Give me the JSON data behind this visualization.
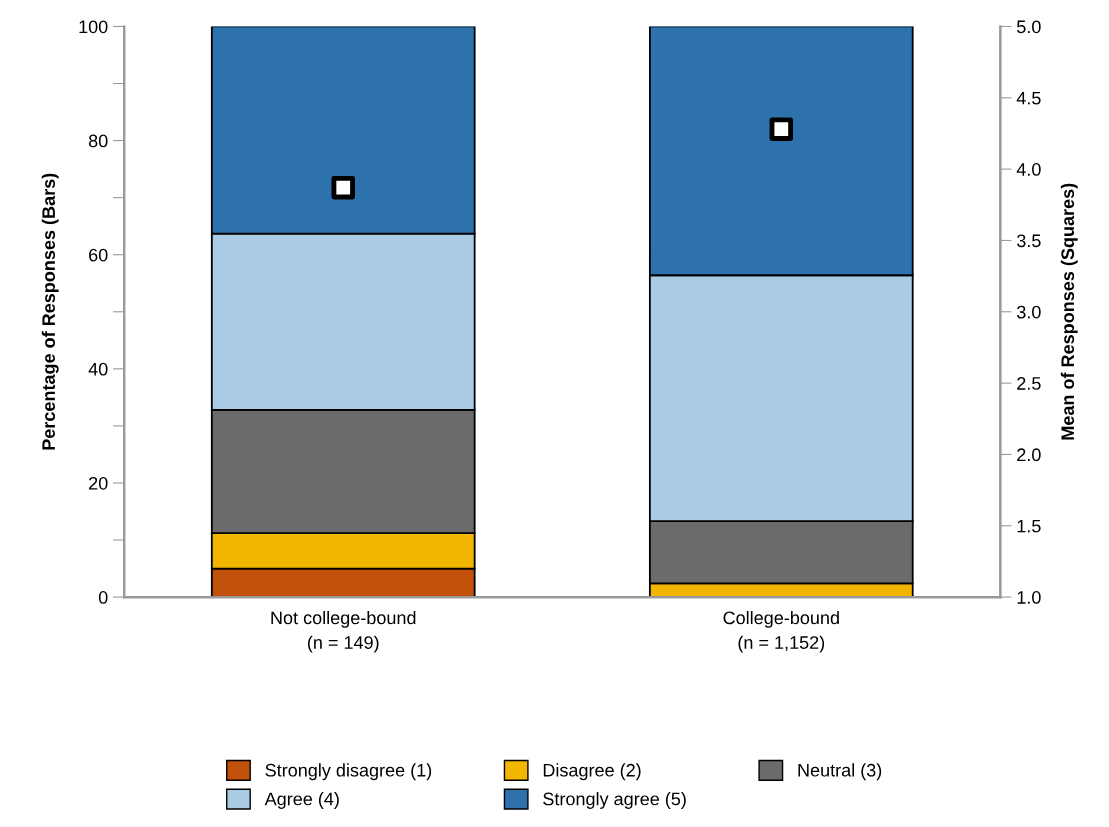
{
  "chart_data": {
    "type": "bar",
    "stacked": true,
    "categories": [
      "Not college-bound\n(n = 149)",
      "College-bound\n(n = 1,152)"
    ],
    "series": [
      {
        "name": "Strongly disagree (1)",
        "color": "#c0500a",
        "values": [
          5.0,
          0
        ]
      },
      {
        "name": "Disagree (2)",
        "color": "#f2b500",
        "values": [
          6.2,
          2.4
        ]
      },
      {
        "name": "Neutral (3)",
        "color": "#6b6b6b",
        "values": [
          21.6,
          10.9
        ]
      },
      {
        "name": "Agree (4)",
        "color": "#a9cbe3",
        "values": [
          30.9,
          43.1
        ]
      },
      {
        "name": "Strongly agree (5)",
        "color": "#2d72ad",
        "values": [
          36.3,
          43.6
        ]
      },
      {
        "type": "scatter",
        "axis": "y2",
        "marker": "square",
        "color": "#ffffff",
        "x": [
          "Not college-bound\n(n = 149)",
          "College-bound\n(n = 1,152)"
        ],
        "values": [
          3.87,
          4.28
        ]
      }
    ],
    "ylabel": "Percentage of Responses (Bars)",
    "y2label": "Mean of Responses (Squares)",
    "ylim": [
      0,
      100
    ],
    "yticks": [
      0,
      {
        "value": 10,
        "label": null
      },
      20,
      {
        "value": 30,
        "label": null
      },
      40,
      {
        "value": 50,
        "label": null
      },
      60,
      {
        "value": 70,
        "label": null
      },
      80,
      {
        "value": 90,
        "label": null
      },
      100
    ],
    "y2lim": [
      1,
      5
    ],
    "y2ticks": [
      {
        "value": 1,
        "label": "1.0"
      },
      1.5,
      {
        "value": 2,
        "label": "2.0"
      },
      2.5,
      {
        "value": 3,
        "label": "3.0"
      },
      3.5,
      {
        "value": 4,
        "label": "4.0"
      },
      4.5,
      {
        "value": 5,
        "label": "5.0"
      }
    ],
    "legend": "bottom",
    "grid": false
  }
}
